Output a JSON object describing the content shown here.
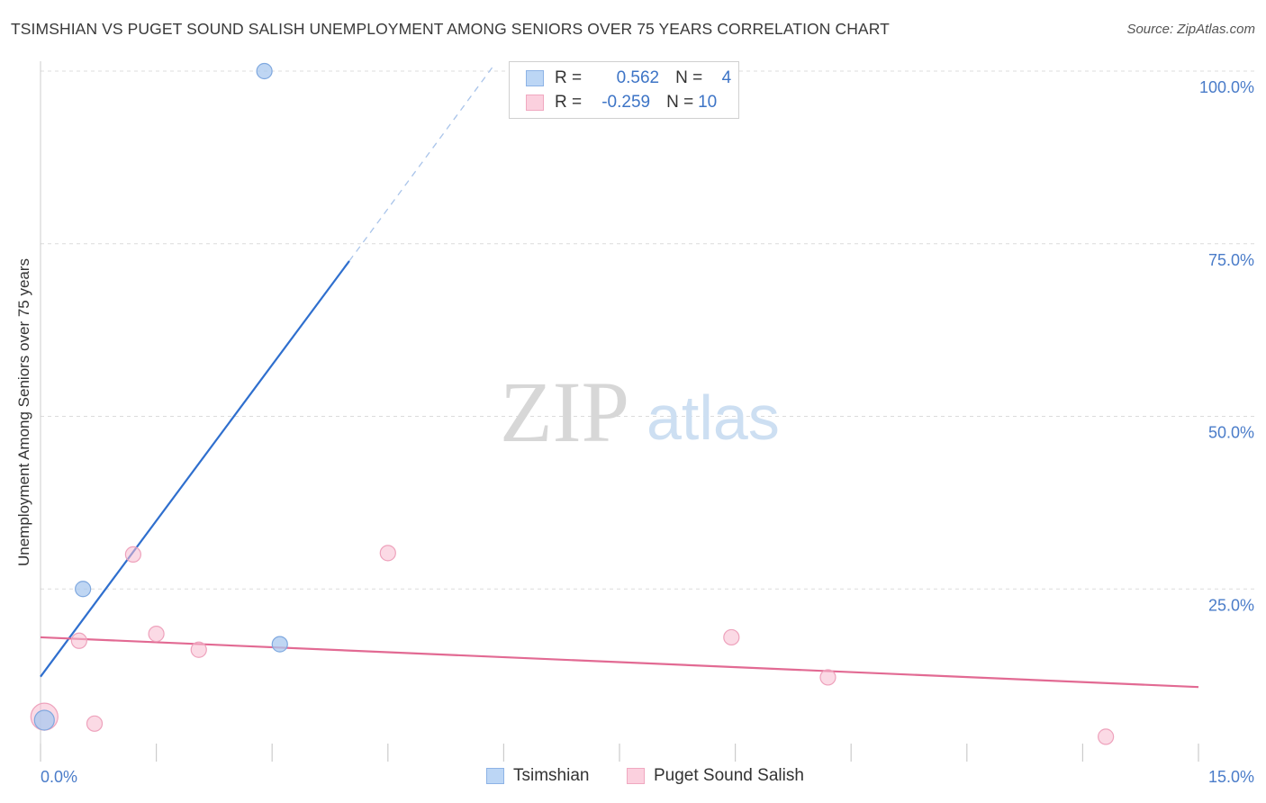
{
  "chart_data": {
    "type": "scatter",
    "title": "TSIMSHIAN VS PUGET SOUND SALISH UNEMPLOYMENT AMONG SENIORS OVER 75 YEARS CORRELATION CHART",
    "source": "Source: ZipAtlas.com",
    "ylabel": "Unemployment Among Seniors over 75 years",
    "xlabel": "",
    "xlim": [
      0,
      15
    ],
    "ylim": [
      0,
      100
    ],
    "x_tick_labels": [
      "0.0%",
      "15.0%"
    ],
    "y_ticks": [
      25,
      50,
      75,
      100
    ],
    "y_tick_labels": [
      "25.0%",
      "50.0%",
      "75.0%",
      "100.0%"
    ],
    "watermark": {
      "zip": "ZIP",
      "atlas": "atlas"
    },
    "series": [
      {
        "name": "Tsimshian",
        "color": "#a9c8ef",
        "line_color": "#2f6fce",
        "r_label": "R =",
        "r_value": "0.562",
        "n_label": "N =",
        "n_value": "4",
        "points": [
          {
            "x": 0.05,
            "y": 6.0,
            "big": true
          },
          {
            "x": 0.55,
            "y": 25.0
          },
          {
            "x": 2.9,
            "y": 100.0
          },
          {
            "x": 3.1,
            "y": 17.0
          }
        ],
        "trend": {
          "x0": 0.0,
          "y0": 12.3,
          "x1": 4.0,
          "y1": 72.5,
          "dash_x1": 5.85,
          "dash_y1": 100.5
        }
      },
      {
        "name": "Puget Sound Salish",
        "color": "#f7bcd0",
        "line_color": "#e26a93",
        "r_label": "R =",
        "r_value": "-0.259",
        "n_label": "N =",
        "n_value": "10",
        "points": [
          {
            "x": 0.05,
            "y": 6.5,
            "big": true
          },
          {
            "x": 0.5,
            "y": 17.5
          },
          {
            "x": 0.7,
            "y": 5.5
          },
          {
            "x": 1.2,
            "y": 30.0
          },
          {
            "x": 1.5,
            "y": 18.5
          },
          {
            "x": 2.05,
            "y": 16.2
          },
          {
            "x": 4.5,
            "y": 30.2
          },
          {
            "x": 8.95,
            "y": 18.0
          },
          {
            "x": 10.2,
            "y": 12.2
          },
          {
            "x": 13.8,
            "y": 3.6
          }
        ],
        "trend": {
          "x0": 0.0,
          "y0": 18.0,
          "x1": 15.0,
          "y1": 10.8
        }
      }
    ],
    "legend": [
      "Tsimshian",
      "Puget Sound Salish"
    ]
  }
}
